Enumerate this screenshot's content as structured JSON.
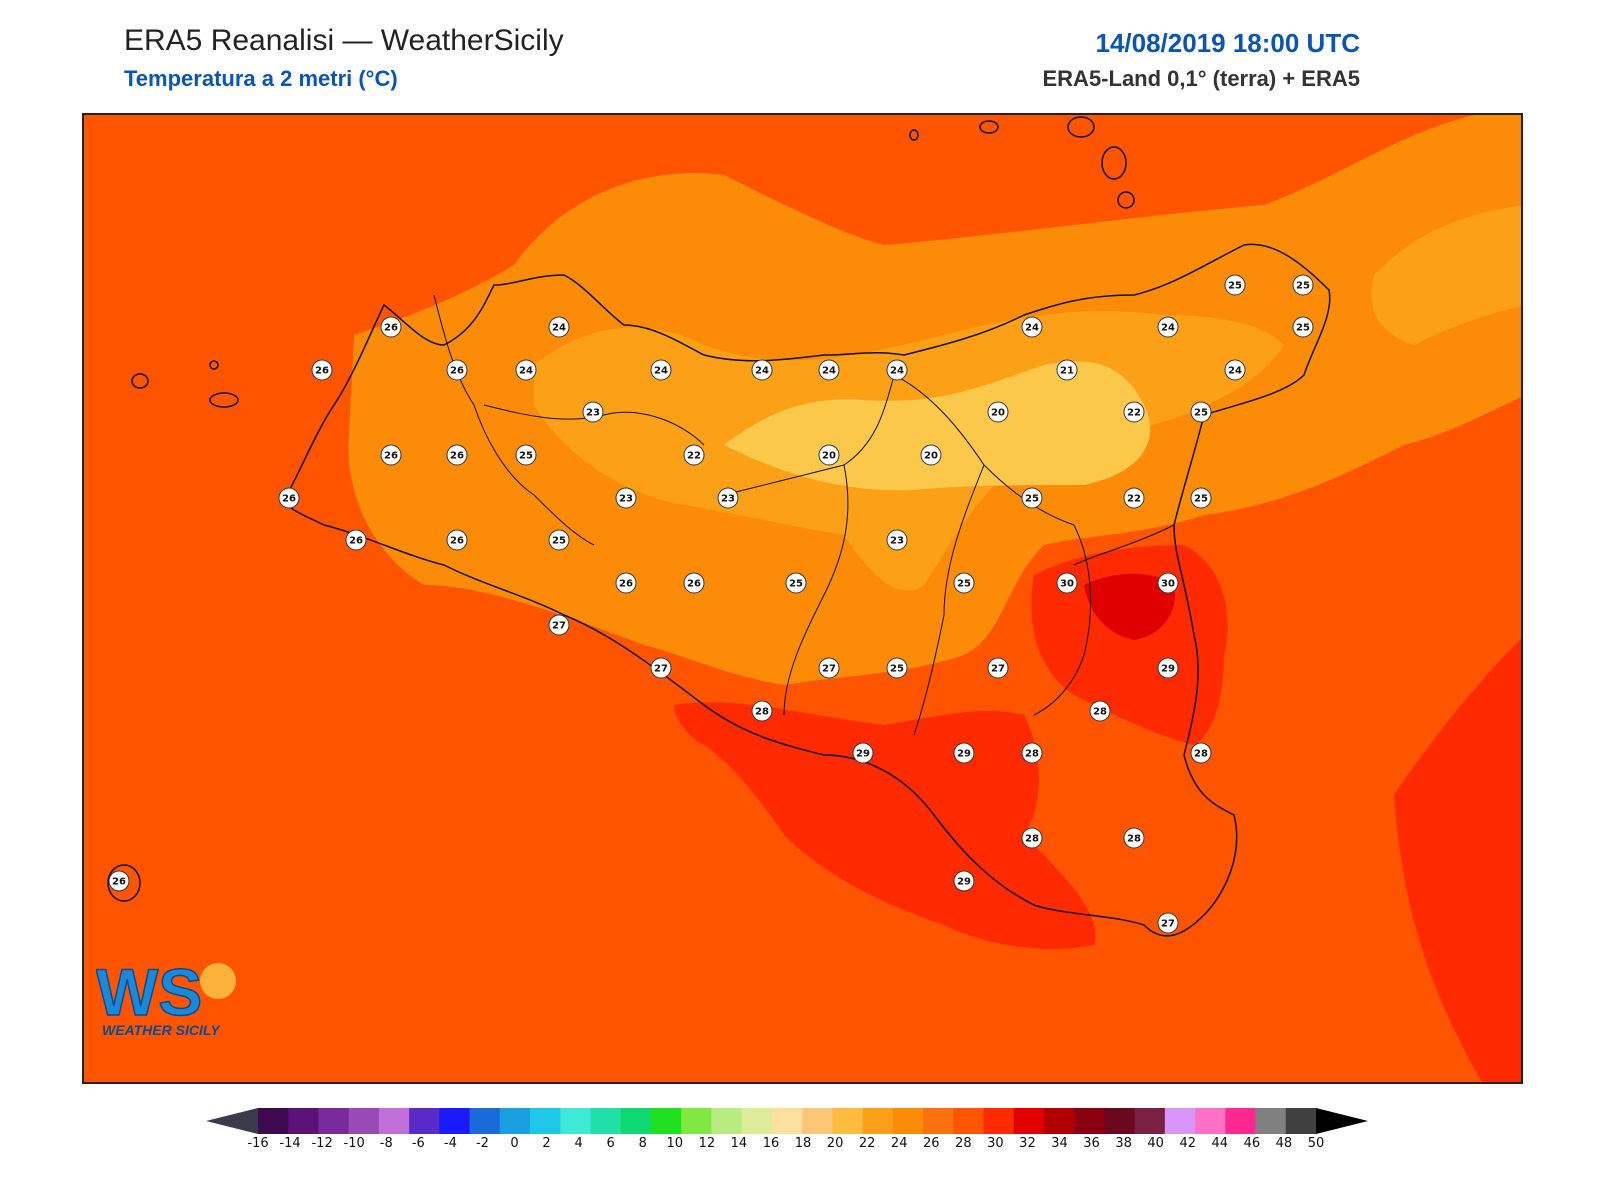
{
  "header": {
    "title": "ERA5 Reanalisi — WeatherSicily",
    "subtitle": "Temperatura a 2 metri (°C)",
    "datetime": "14/08/2019 18:00 UTC",
    "source": "ERA5-Land 0,1° (terra) + ERA5"
  },
  "logo": {
    "text": "WS",
    "tagline": "WEATHER SICILY"
  },
  "colors": {
    "sea_background": "#ff5500",
    "title_blue": "#0b55b0"
  },
  "stations": [
    {
      "v": "26"
    },
    {
      "v": "24"
    },
    {
      "v": "26"
    },
    {
      "v": "26"
    },
    {
      "v": "24"
    },
    {
      "v": "24"
    },
    {
      "v": "24"
    },
    {
      "v": "24"
    },
    {
      "v": "24"
    },
    {
      "v": "24"
    },
    {
      "v": "24"
    },
    {
      "v": "21"
    },
    {
      "v": "25"
    },
    {
      "v": "25"
    },
    {
      "v": "25"
    },
    {
      "v": "24"
    },
    {
      "v": "23"
    },
    {
      "v": "20"
    },
    {
      "v": "22"
    },
    {
      "v": "25"
    },
    {
      "v": "26"
    },
    {
      "v": "26"
    },
    {
      "v": "25"
    },
    {
      "v": "22"
    },
    {
      "v": "20"
    },
    {
      "v": "20"
    },
    {
      "v": "26"
    },
    {
      "v": "23"
    },
    {
      "v": "23"
    },
    {
      "v": "25"
    },
    {
      "v": "22"
    },
    {
      "v": "25"
    },
    {
      "v": "26"
    },
    {
      "v": "26"
    },
    {
      "v": "25"
    },
    {
      "v": "23"
    },
    {
      "v": "26"
    },
    {
      "v": "26"
    },
    {
      "v": "25"
    },
    {
      "v": "25"
    },
    {
      "v": "30"
    },
    {
      "v": "30"
    },
    {
      "v": "27"
    },
    {
      "v": "27"
    },
    {
      "v": "27"
    },
    {
      "v": "25"
    },
    {
      "v": "27"
    },
    {
      "v": "29"
    },
    {
      "v": "28"
    },
    {
      "v": "28"
    },
    {
      "v": "29"
    },
    {
      "v": "29"
    },
    {
      "v": "28"
    },
    {
      "v": "28"
    },
    {
      "v": "28"
    },
    {
      "v": "28"
    },
    {
      "v": "29"
    },
    {
      "v": "26"
    },
    {
      "v": "27"
    }
  ],
  "colorbar": {
    "labels": [
      "-16",
      "-14",
      "-12",
      "-10",
      "-8",
      "-6",
      "-4",
      "-2",
      "0",
      "2",
      "4",
      "6",
      "8",
      "10",
      "12",
      "14",
      "16",
      "18",
      "20",
      "22",
      "24",
      "26",
      "28",
      "30",
      "32",
      "34",
      "36",
      "38",
      "40",
      "42",
      "44",
      "46",
      "48",
      "50"
    ],
    "colors": [
      "#3d0a4f",
      "#5a1277",
      "#7a2a9a",
      "#9a4ab5",
      "#c070d8",
      "#5a2ac8",
      "#1a1aff",
      "#1a6ad8",
      "#1aa0e0",
      "#20c8e8",
      "#40e8d8",
      "#20e0a8",
      "#10d870",
      "#20e020",
      "#80e840",
      "#b8ec80",
      "#dcec98",
      "#fce0a0",
      "#fcc878",
      "#fcbc40",
      "#fca018",
      "#fc8c08",
      "#fc7010",
      "#ff5500",
      "#ff2a00",
      "#e00000",
      "#b00000",
      "#8a0010",
      "#6a0820",
      "#7a2040",
      "#d896f8",
      "#ff70c8",
      "#ff2890",
      "#808080",
      "#404040"
    ]
  }
}
